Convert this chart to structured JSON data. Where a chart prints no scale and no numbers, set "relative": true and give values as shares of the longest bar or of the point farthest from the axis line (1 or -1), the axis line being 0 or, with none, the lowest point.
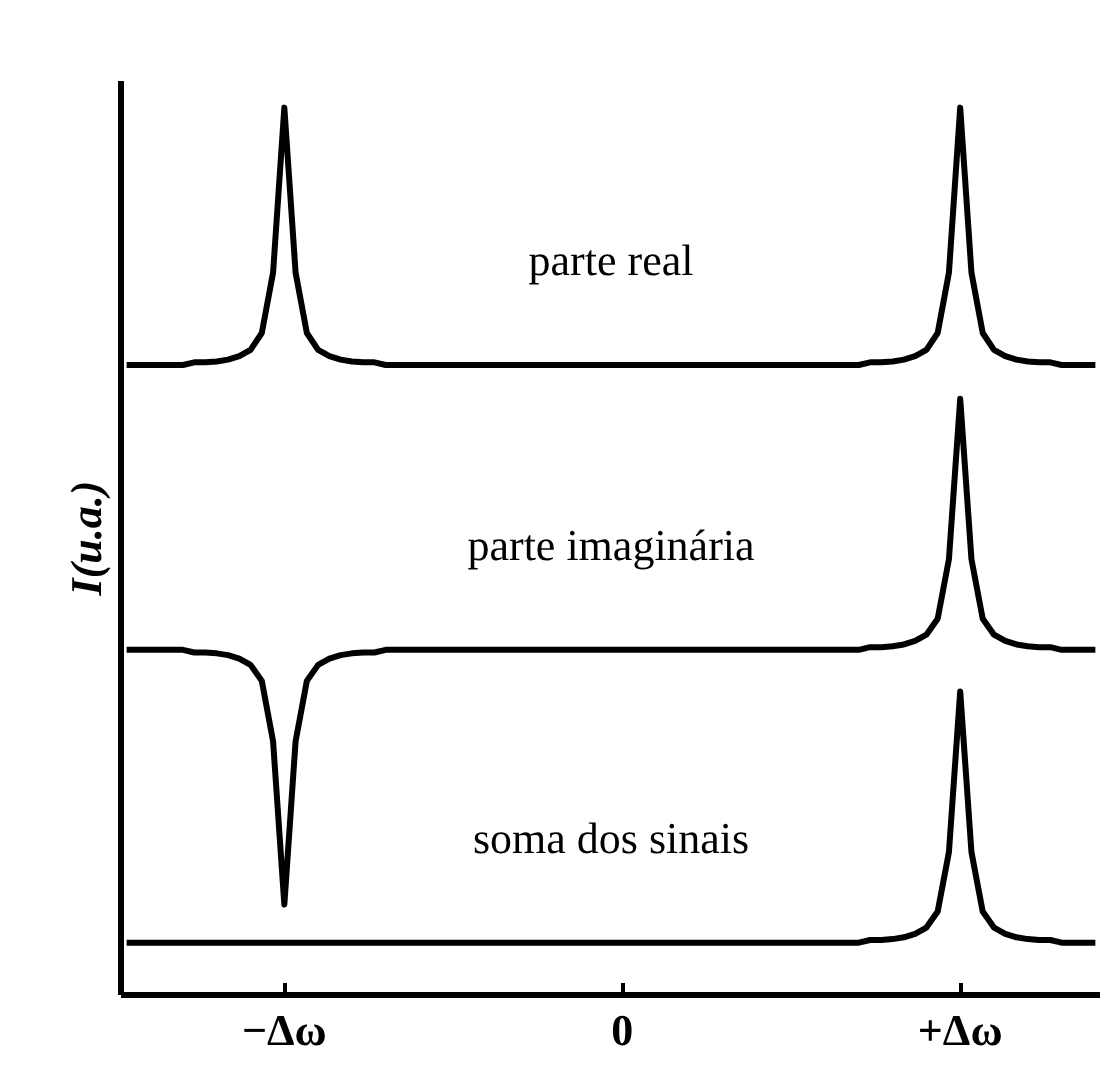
{
  "chart_data": {
    "type": "line",
    "relative": true,
    "ylabel": "I(u.a.)",
    "categories": [
      null,
      null,
      null,
      null,
      null,
      null,
      null,
      null,
      null,
      null,
      null,
      null,
      null,
      null,
      "−Δω",
      null,
      null,
      null,
      null,
      null,
      null,
      null,
      null,
      null,
      null,
      null,
      null,
      null,
      null,
      null,
      null,
      null,
      null,
      null,
      null,
      null,
      null,
      null,
      null,
      null,
      null,
      null,
      null,
      null,
      "0",
      null,
      null,
      null,
      null,
      null,
      null,
      null,
      null,
      null,
      null,
      null,
      null,
      null,
      null,
      null,
      null,
      null,
      null,
      null,
      null,
      null,
      null,
      null,
      null,
      null,
      null,
      null,
      null,
      null,
      "+Δω",
      null,
      null,
      null,
      null,
      null,
      null,
      null,
      null,
      null,
      null,
      null,
      null
    ],
    "grid": false,
    "marker": "none",
    "line_style": "solid",
    "series": [
      {
        "name": "parte real",
        "color": "#000000",
        "values": [
          0.71,
          0.71,
          0.71,
          0.71,
          0.71,
          0.71,
          0.713,
          0.713,
          0.714,
          0.716,
          0.72,
          0.727,
          0.746,
          0.814,
          1.0,
          0.814,
          0.746,
          0.727,
          0.72,
          0.716,
          0.714,
          0.713,
          0.713,
          0.71,
          0.71,
          0.71,
          0.71,
          0.71,
          0.71,
          0.71,
          0.71,
          0.71,
          0.71,
          0.71,
          0.71,
          0.71,
          0.71,
          0.71,
          0.71,
          0.71,
          0.71,
          0.71,
          0.71,
          0.71,
          0.71,
          0.71,
          0.71,
          0.71,
          0.71,
          0.71,
          0.71,
          0.71,
          0.71,
          0.71,
          0.71,
          0.71,
          0.71,
          0.71,
          0.71,
          0.71,
          0.71,
          0.71,
          0.71,
          0.71,
          0.71,
          0.71,
          0.713,
          0.713,
          0.714,
          0.716,
          0.72,
          0.727,
          0.746,
          0.814,
          1.0,
          0.814,
          0.746,
          0.727,
          0.72,
          0.716,
          0.714,
          0.713,
          0.713,
          0.71,
          0.71,
          0.71,
          0.71
        ]
      },
      {
        "name": "parte imaginária",
        "color": "#000000",
        "values": [
          0.389,
          0.389,
          0.389,
          0.389,
          0.389,
          0.389,
          0.386,
          0.386,
          0.385,
          0.383,
          0.379,
          0.372,
          0.354,
          0.286,
          0.102,
          0.286,
          0.354,
          0.372,
          0.379,
          0.383,
          0.385,
          0.386,
          0.386,
          0.389,
          0.389,
          0.389,
          0.389,
          0.389,
          0.389,
          0.389,
          0.389,
          0.389,
          0.389,
          0.389,
          0.389,
          0.389,
          0.389,
          0.389,
          0.389,
          0.389,
          0.389,
          0.389,
          0.389,
          0.389,
          0.389,
          0.389,
          0.389,
          0.389,
          0.389,
          0.389,
          0.389,
          0.389,
          0.389,
          0.389,
          0.389,
          0.389,
          0.389,
          0.389,
          0.389,
          0.389,
          0.389,
          0.389,
          0.389,
          0.389,
          0.389,
          0.389,
          0.392,
          0.392,
          0.393,
          0.395,
          0.399,
          0.406,
          0.424,
          0.491,
          0.672,
          0.491,
          0.424,
          0.406,
          0.399,
          0.395,
          0.393,
          0.392,
          0.392,
          0.389,
          0.389,
          0.389,
          0.389
        ]
      },
      {
        "name": "soma dos sinais",
        "color": "#000000",
        "values": [
          0.059,
          0.059,
          0.059,
          0.059,
          0.059,
          0.059,
          0.059,
          0.059,
          0.059,
          0.059,
          0.059,
          0.059,
          0.059,
          0.059,
          0.059,
          0.059,
          0.059,
          0.059,
          0.059,
          0.059,
          0.059,
          0.059,
          0.059,
          0.059,
          0.059,
          0.059,
          0.059,
          0.059,
          0.059,
          0.059,
          0.059,
          0.059,
          0.059,
          0.059,
          0.059,
          0.059,
          0.059,
          0.059,
          0.059,
          0.059,
          0.059,
          0.059,
          0.059,
          0.059,
          0.059,
          0.059,
          0.059,
          0.059,
          0.059,
          0.059,
          0.059,
          0.059,
          0.059,
          0.059,
          0.059,
          0.059,
          0.059,
          0.059,
          0.059,
          0.059,
          0.059,
          0.059,
          0.059,
          0.059,
          0.059,
          0.059,
          0.062,
          0.062,
          0.063,
          0.065,
          0.069,
          0.076,
          0.094,
          0.161,
          0.342,
          0.161,
          0.094,
          0.076,
          0.069,
          0.065,
          0.063,
          0.062,
          0.062,
          0.059,
          0.059,
          0.059,
          0.059
        ]
      }
    ]
  }
}
